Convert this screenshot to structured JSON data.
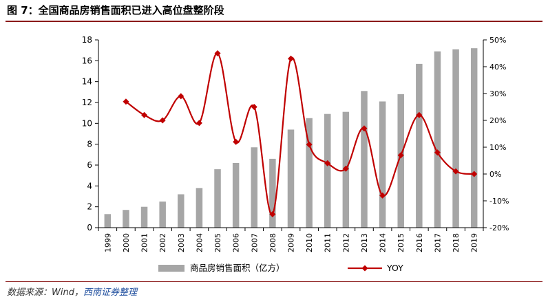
{
  "header": {
    "title": "图 7：全国商品房销售面积已进入高位盘整阶段"
  },
  "footer": {
    "source_prefix": "数据来源：Wind，",
    "source_brand": "西南证券整理"
  },
  "chart_data": {
    "type": "bar",
    "categories": [
      "1999",
      "2000",
      "2001",
      "2002",
      "2003",
      "2004",
      "2005",
      "2006",
      "2007",
      "2008",
      "2009",
      "2010",
      "2011",
      "2012",
      "2013",
      "2014",
      "2015",
      "2016",
      "2017",
      "2018",
      "2019"
    ],
    "series": [
      {
        "name": "商品房销售面积（亿方）",
        "type": "bar",
        "axis": "left",
        "color": "#a6a6a6",
        "values": [
          1.3,
          1.7,
          2.0,
          2.5,
          3.2,
          3.8,
          5.6,
          6.2,
          7.7,
          6.6,
          9.4,
          10.5,
          10.9,
          11.1,
          13.1,
          12.1,
          12.8,
          15.7,
          16.9,
          17.1,
          17.2
        ]
      },
      {
        "name": "YOY",
        "type": "line",
        "axis": "right",
        "color": "#c00000",
        "values": [
          null,
          27,
          22,
          20,
          29,
          19,
          45,
          12,
          25,
          -15,
          43,
          11,
          4,
          2,
          17,
          -8,
          7,
          22,
          8,
          1,
          0
        ]
      }
    ],
    "yaxis_left": {
      "ylim": [
        0,
        18
      ],
      "ticks": [
        "0",
        "2",
        "4",
        "6",
        "8",
        "10",
        "12",
        "14",
        "16",
        "18"
      ]
    },
    "yaxis_right": {
      "ylim": [
        -20,
        50
      ],
      "ticks": [
        "-20%",
        "-10%",
        "0%",
        "10%",
        "20%",
        "30%",
        "40%",
        "50%"
      ]
    },
    "legend_position": "bottom",
    "grid": false
  }
}
